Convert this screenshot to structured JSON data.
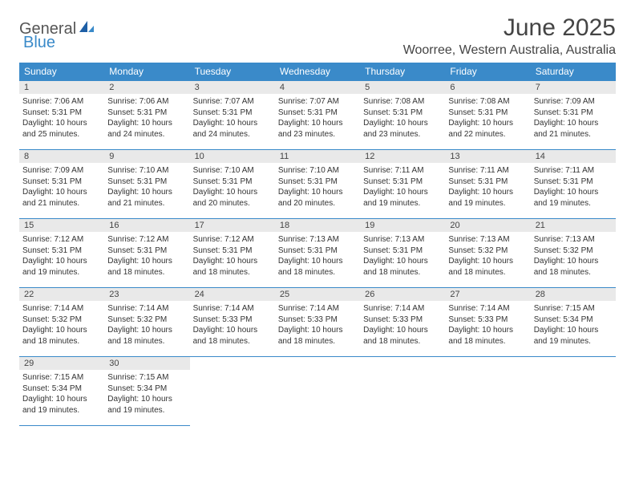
{
  "logo": {
    "text1": "General",
    "text2": "Blue"
  },
  "title": "June 2025",
  "location": "Woorree, Western Australia, Australia",
  "colors": {
    "header_bg": "#3a8ac9",
    "header_fg": "#ffffff",
    "daynum_bg": "#e9e9e9",
    "border": "#3a8ac9",
    "text": "#333333",
    "logo_accent": "#3a8ac9"
  },
  "typography": {
    "title_fontsize": 30,
    "location_fontsize": 16,
    "dayheader_fontsize": 12,
    "daynum_fontsize": 11,
    "body_fontsize": 10
  },
  "calendar": {
    "type": "table",
    "columns": [
      "Sunday",
      "Monday",
      "Tuesday",
      "Wednesday",
      "Thursday",
      "Friday",
      "Saturday"
    ],
    "days": [
      {
        "n": 1,
        "sunrise": "7:06 AM",
        "sunset": "5:31 PM",
        "daylight": "10 hours and 25 minutes."
      },
      {
        "n": 2,
        "sunrise": "7:06 AM",
        "sunset": "5:31 PM",
        "daylight": "10 hours and 24 minutes."
      },
      {
        "n": 3,
        "sunrise": "7:07 AM",
        "sunset": "5:31 PM",
        "daylight": "10 hours and 24 minutes."
      },
      {
        "n": 4,
        "sunrise": "7:07 AM",
        "sunset": "5:31 PM",
        "daylight": "10 hours and 23 minutes."
      },
      {
        "n": 5,
        "sunrise": "7:08 AM",
        "sunset": "5:31 PM",
        "daylight": "10 hours and 23 minutes."
      },
      {
        "n": 6,
        "sunrise": "7:08 AM",
        "sunset": "5:31 PM",
        "daylight": "10 hours and 22 minutes."
      },
      {
        "n": 7,
        "sunrise": "7:09 AM",
        "sunset": "5:31 PM",
        "daylight": "10 hours and 21 minutes."
      },
      {
        "n": 8,
        "sunrise": "7:09 AM",
        "sunset": "5:31 PM",
        "daylight": "10 hours and 21 minutes."
      },
      {
        "n": 9,
        "sunrise": "7:10 AM",
        "sunset": "5:31 PM",
        "daylight": "10 hours and 21 minutes."
      },
      {
        "n": 10,
        "sunrise": "7:10 AM",
        "sunset": "5:31 PM",
        "daylight": "10 hours and 20 minutes."
      },
      {
        "n": 11,
        "sunrise": "7:10 AM",
        "sunset": "5:31 PM",
        "daylight": "10 hours and 20 minutes."
      },
      {
        "n": 12,
        "sunrise": "7:11 AM",
        "sunset": "5:31 PM",
        "daylight": "10 hours and 19 minutes."
      },
      {
        "n": 13,
        "sunrise": "7:11 AM",
        "sunset": "5:31 PM",
        "daylight": "10 hours and 19 minutes."
      },
      {
        "n": 14,
        "sunrise": "7:11 AM",
        "sunset": "5:31 PM",
        "daylight": "10 hours and 19 minutes."
      },
      {
        "n": 15,
        "sunrise": "7:12 AM",
        "sunset": "5:31 PM",
        "daylight": "10 hours and 19 minutes."
      },
      {
        "n": 16,
        "sunrise": "7:12 AM",
        "sunset": "5:31 PM",
        "daylight": "10 hours and 18 minutes."
      },
      {
        "n": 17,
        "sunrise": "7:12 AM",
        "sunset": "5:31 PM",
        "daylight": "10 hours and 18 minutes."
      },
      {
        "n": 18,
        "sunrise": "7:13 AM",
        "sunset": "5:31 PM",
        "daylight": "10 hours and 18 minutes."
      },
      {
        "n": 19,
        "sunrise": "7:13 AM",
        "sunset": "5:31 PM",
        "daylight": "10 hours and 18 minutes."
      },
      {
        "n": 20,
        "sunrise": "7:13 AM",
        "sunset": "5:32 PM",
        "daylight": "10 hours and 18 minutes."
      },
      {
        "n": 21,
        "sunrise": "7:13 AM",
        "sunset": "5:32 PM",
        "daylight": "10 hours and 18 minutes."
      },
      {
        "n": 22,
        "sunrise": "7:14 AM",
        "sunset": "5:32 PM",
        "daylight": "10 hours and 18 minutes."
      },
      {
        "n": 23,
        "sunrise": "7:14 AM",
        "sunset": "5:32 PM",
        "daylight": "10 hours and 18 minutes."
      },
      {
        "n": 24,
        "sunrise": "7:14 AM",
        "sunset": "5:33 PM",
        "daylight": "10 hours and 18 minutes."
      },
      {
        "n": 25,
        "sunrise": "7:14 AM",
        "sunset": "5:33 PM",
        "daylight": "10 hours and 18 minutes."
      },
      {
        "n": 26,
        "sunrise": "7:14 AM",
        "sunset": "5:33 PM",
        "daylight": "10 hours and 18 minutes."
      },
      {
        "n": 27,
        "sunrise": "7:14 AM",
        "sunset": "5:33 PM",
        "daylight": "10 hours and 18 minutes."
      },
      {
        "n": 28,
        "sunrise": "7:15 AM",
        "sunset": "5:34 PM",
        "daylight": "10 hours and 19 minutes."
      },
      {
        "n": 29,
        "sunrise": "7:15 AM",
        "sunset": "5:34 PM",
        "daylight": "10 hours and 19 minutes."
      },
      {
        "n": 30,
        "sunrise": "7:15 AM",
        "sunset": "5:34 PM",
        "daylight": "10 hours and 19 minutes."
      }
    ],
    "labels": {
      "sunrise": "Sunrise:",
      "sunset": "Sunset:",
      "daylight": "Daylight:"
    }
  }
}
